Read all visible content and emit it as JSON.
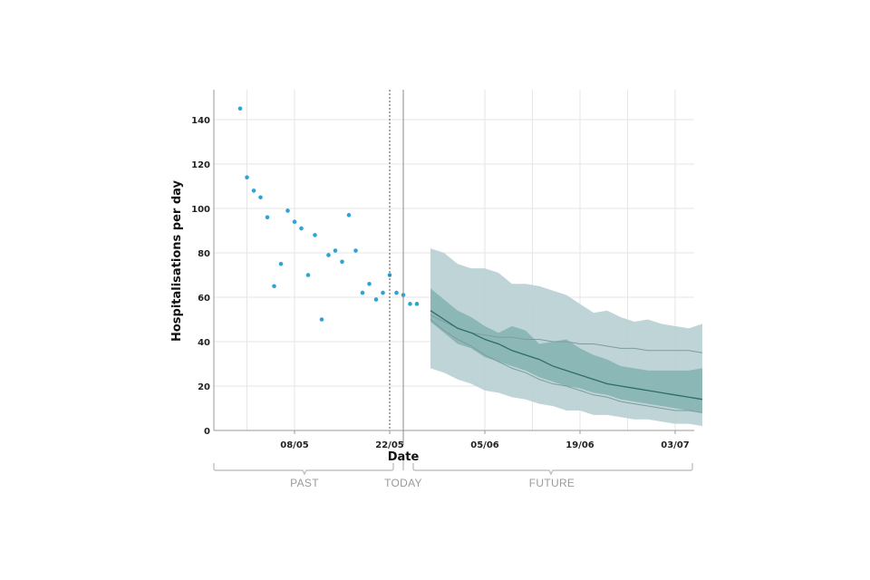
{
  "chart_data": {
    "type": "line",
    "title": "",
    "xlabel": "Date",
    "ylabel": "Hospitalisations per day",
    "x_range_days": [
      -22,
      32
    ],
    "ylim": [
      0,
      150
    ],
    "y_ticks": [
      0,
      20,
      40,
      60,
      80,
      100,
      120,
      140
    ],
    "x_ticks": [
      {
        "label": "08/05",
        "day": -14
      },
      {
        "label": "22/05",
        "day": 0
      },
      {
        "label": "05/06",
        "day": 14
      },
      {
        "label": "19/06",
        "day": 28
      },
      {
        "label": "03/07",
        "day": 42
      }
    ],
    "grid": true,
    "periods": [
      {
        "label": "PAST"
      },
      {
        "label": "TODAY"
      },
      {
        "label": "FUTURE"
      }
    ],
    "colors": {
      "observed": "#2ea3d6",
      "outer_band": "#b7cfd3",
      "inner_band": "#86b4b4",
      "median": "#2e6b6b",
      "scenario_line": "#7f9c9c"
    },
    "observed": [
      {
        "day": -22,
        "y": 145
      },
      {
        "day": -21,
        "y": 114
      },
      {
        "day": -20,
        "y": 108
      },
      {
        "day": -19,
        "y": 105
      },
      {
        "day": -18,
        "y": 96
      },
      {
        "day": -17,
        "y": 65
      },
      {
        "day": -16,
        "y": 75
      },
      {
        "day": -15,
        "y": 99
      },
      {
        "day": -14,
        "y": 94
      },
      {
        "day": -13,
        "y": 91
      },
      {
        "day": -12,
        "y": 70
      },
      {
        "day": -11,
        "y": 88
      },
      {
        "day": -10,
        "y": 50
      },
      {
        "day": -9,
        "y": 79
      },
      {
        "day": -8,
        "y": 81
      },
      {
        "day": -7,
        "y": 76
      },
      {
        "day": -6,
        "y": 97
      },
      {
        "day": -5,
        "y": 81
      },
      {
        "day": -4,
        "y": 62
      },
      {
        "day": -3,
        "y": 66
      },
      {
        "day": -2,
        "y": 59
      },
      {
        "day": -1,
        "y": 62
      },
      {
        "day": 0,
        "y": 70
      },
      {
        "day": 1,
        "y": 62
      },
      {
        "day": 2,
        "y": 61
      },
      {
        "day": 3,
        "y": 57
      },
      {
        "day": 4,
        "y": 57
      }
    ],
    "forecast": {
      "days": [
        6,
        8,
        10,
        12,
        14,
        16,
        18,
        20,
        22,
        24,
        26,
        28,
        30,
        32,
        34,
        36,
        38,
        40,
        42,
        44,
        46
      ],
      "outer_upper": [
        82,
        80,
        75,
        73,
        73,
        71,
        66,
        66,
        65,
        63,
        61,
        57,
        53,
        54,
        51,
        49,
        50,
        48,
        47,
        46,
        48
      ],
      "outer_lower": [
        28,
        26,
        23,
        21,
        18,
        17,
        15,
        14,
        12,
        11,
        9,
        9,
        7,
        7,
        6,
        5,
        5,
        4,
        3,
        3,
        2
      ],
      "inner_upper": [
        64,
        59,
        54,
        51,
        47,
        44,
        47,
        45,
        39,
        40,
        41,
        37,
        34,
        32,
        29,
        28,
        27,
        27,
        27,
        27,
        28
      ],
      "inner_lower": [
        49,
        44,
        39,
        37,
        33,
        31,
        29,
        27,
        24,
        22,
        20,
        19,
        17,
        16,
        14,
        13,
        12,
        11,
        10,
        9,
        8
      ],
      "median": [
        54,
        50,
        46,
        44,
        41,
        39,
        36,
        34,
        32,
        29,
        27,
        25,
        23,
        21,
        20,
        19,
        18,
        17,
        16,
        15,
        14
      ],
      "scenario_high": [
        52,
        49,
        46,
        44,
        43,
        42,
        42,
        41,
        41,
        40,
        40,
        39,
        39,
        38,
        37,
        37,
        36,
        36,
        36,
        36,
        35
      ],
      "scenario_low": [
        50,
        45,
        41,
        38,
        34,
        31,
        28,
        26,
        23,
        21,
        20,
        18,
        16,
        15,
        13,
        12,
        11,
        10,
        9,
        9,
        8
      ]
    }
  }
}
